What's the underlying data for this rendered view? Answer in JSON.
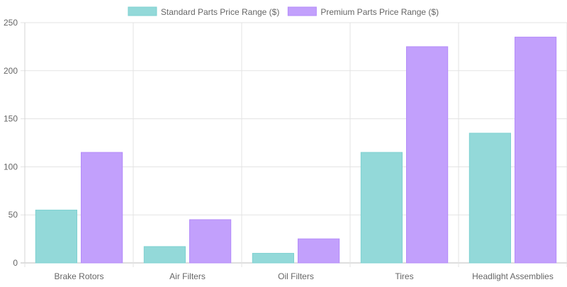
{
  "chart_data": {
    "type": "bar",
    "categories": [
      "Brake Rotors",
      "Air Filters",
      "Oil Filters",
      "Tires",
      "Headlight Assemblies"
    ],
    "series": [
      {
        "name": "Standard Parts Price Range ($)",
        "values": [
          55,
          17,
          10,
          115,
          135
        ],
        "color": "#93d9d9",
        "border": "#7fd1d1"
      },
      {
        "name": "Premium Parts Price Range ($)",
        "values": [
          115,
          45,
          25,
          225,
          235
        ],
        "color": "#c2a0fc",
        "border": "#b48cf9"
      }
    ],
    "yticks": [
      0,
      50,
      100,
      150,
      200,
      250
    ],
    "ylim": [
      0,
      250
    ],
    "grid": true,
    "legend_position": "top"
  }
}
